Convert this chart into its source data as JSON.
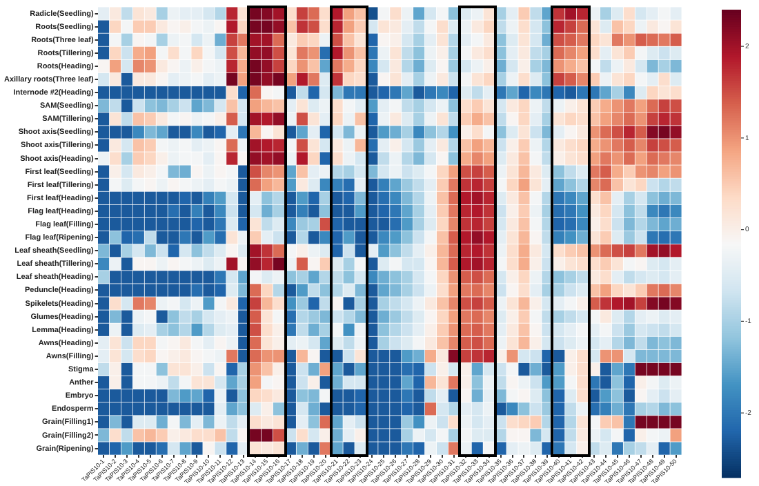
{
  "chart_data": {
    "type": "heatmap",
    "categories": [
      "TaPIS10-1",
      "TaPIS10-2",
      "TaPIS10-3",
      "TaPIS10-4",
      "TaPIS10-5",
      "TaPIS10-6",
      "TaPIS10-7",
      "TaPIS10-8",
      "TaPIS10-9",
      "TaPIS10-10",
      "TaPIS10-11",
      "TaPIS10-12",
      "TaPIS10-13",
      "TaPIS10-14",
      "TaPIS10-15",
      "TaPIS10-16",
      "TaPIS10-17",
      "TaPIS10-18",
      "TaPIS10-19",
      "TaPIS10-20",
      "TaPIS10-21",
      "TaPIS10-22",
      "TaPIS10-23",
      "TaPIS10-24",
      "TaPIS10-25",
      "TaPIS10-26",
      "TaPIS10-27",
      "TaPIS10-28",
      "TaPIS10-29",
      "TaPIS10-30",
      "TaPIS10-31",
      "TaPIS10-32",
      "TaPIS10-33",
      "TaPIS10-34",
      "TaPIS10-35",
      "TaPIS10-36",
      "TaPIS10-37",
      "TaPIS10-38",
      "TaPIS10-39",
      "TaPIS10-40",
      "TaPIS10-41",
      "TaPIS10-42",
      "TaPIS10-43",
      "TaPIS10-44",
      "TaPIS10-45",
      "TaPIS10-46",
      "TaPIS10-47",
      "TaPIS10-48",
      "TaPIS10-49",
      "TaPIS10-50"
    ],
    "y_categories": [
      "Radicle(Seedling)",
      "Roots(Seedling)",
      "Roots(Three leaf)",
      "Roots(Tillering)",
      "Roots(Heading)",
      "Axillary roots(Three leaf)",
      "Internode #2(Heading)",
      "SAM(Seedling)",
      "SAM(Tillering)",
      "Shoot axis(Seedling)",
      "Shoot axis(Tillering)",
      "Shoot axis(Heading)",
      "First leaf(Seedling)",
      "First leaf(Tillering)",
      "First leaf(Heading)",
      "Flag leaf(Heading)",
      "Flag leaf(Filling)",
      "Flag leaf(Ripening)",
      "Leaf sheath(Seedling)",
      "Leaf sheath(Tillering)",
      "Leaf sheath(Heading)",
      "Peduncle(Heading)",
      "Spikelets(Heading)",
      "Glumes(Heading)",
      "Lemma(Heading)",
      "Awns(Heading)",
      "Awns(Filling)",
      "Stigma",
      "Anther",
      "Embryo",
      "Endosperm",
      "Grain(Filling1)",
      "Grain(Filling2)",
      "Grain(Ripening)"
    ],
    "cells": [
      [
        -0.4,
        0.1,
        -0.8,
        0.2,
        0.1,
        -1.0,
        -0.3,
        -0.4,
        -0.4,
        -0.6,
        -0.9,
        1.8,
        0.2,
        2.3,
        2.2,
        2.0,
        0.3,
        1.6,
        1.3,
        0.3,
        1.9,
        0.9,
        0.6,
        -2.4,
        -0.2,
        0.3,
        -0.3,
        -1.5,
        -0.6,
        -0.2,
        -1.2,
        -0.5,
        -0.3,
        0.2,
        -1.0,
        -0.4,
        0.5,
        -0.8,
        -1.5,
        1.7,
        2.0,
        1.8,
        -0.3,
        -1.0,
        -0.5,
        0.3,
        -0.6,
        -0.4,
        -0.2,
        -0.4
      ],
      [
        -2.3,
        0.4,
        -0.2,
        0.5,
        0.5,
        0.1,
        -0.1,
        0.0,
        -0.2,
        -0.3,
        -0.1,
        1.9,
        0.4,
        2.3,
        2.3,
        2.1,
        0.6,
        1.7,
        1.5,
        0.3,
        1.8,
        0.9,
        0.5,
        -0.6,
        0.2,
        0.1,
        -0.4,
        -0.8,
        -0.2,
        0.3,
        -0.5,
        -0.3,
        0.1,
        0.4,
        -0.8,
        -0.3,
        0.3,
        -0.6,
        -1.2,
        1.8,
        1.6,
        1.3,
        0.2,
        -0.5,
        0.6,
        0.4,
        -0.3,
        0.1,
        -0.1,
        0.2
      ],
      [
        -2.3,
        -0.2,
        -1.0,
        -0.1,
        -0.2,
        -1.0,
        -0.3,
        -0.2,
        -0.6,
        -0.3,
        -1.4,
        1.6,
        1.2,
        2.0,
        2.0,
        1.3,
        0.1,
        0.5,
        0.4,
        -0.3,
        1.5,
        0.6,
        0.2,
        -2.2,
        -0.1,
        0.0,
        -0.6,
        -1.0,
        -0.4,
        0.2,
        -0.9,
        -0.4,
        -0.2,
        0.1,
        -1.2,
        -0.5,
        0.2,
        -0.6,
        -1.4,
        1.5,
        1.4,
        1.2,
        0.4,
        0.2,
        1.2,
        1.0,
        1.4,
        1.3,
        1.2,
        1.4
      ],
      [
        -2.3,
        0.4,
        -0.7,
        0.8,
        0.9,
        -0.2,
        0.3,
        -0.2,
        0.4,
        -0.2,
        -0.6,
        1.5,
        0.7,
        2.1,
        2.1,
        1.5,
        0.2,
        1.2,
        1.0,
        -2.1,
        1.9,
        1.0,
        0.6,
        -2.0,
        -0.3,
        0.2,
        -0.8,
        -1.2,
        -0.3,
        0.0,
        -1.0,
        -0.2,
        0.1,
        0.3,
        -1.2,
        -0.4,
        0.1,
        -0.8,
        -1.0,
        1.3,
        1.1,
        0.9,
        0.3,
        -0.4,
        0.2,
        0.5,
        -0.2,
        -0.5,
        -0.7,
        -0.5
      ],
      [
        -0.1,
        0.9,
        -0.6,
        1.1,
        1.0,
        0.1,
        -0.1,
        -0.3,
        0.0,
        -0.2,
        -0.3,
        1.8,
        0.8,
        2.3,
        2.1,
        1.6,
        0.4,
        1.0,
        0.6,
        -1.5,
        1.2,
        0.8,
        0.4,
        -1.8,
        -0.6,
        0.1,
        -0.9,
        -1.4,
        -0.5,
        -0.1,
        -1.1,
        -0.6,
        -0.3,
        0.0,
        -1.4,
        -0.6,
        0.0,
        -1.0,
        -1.3,
        1.0,
        0.8,
        0.6,
        -0.2,
        -0.8,
        -0.3,
        0.1,
        -0.6,
        -1.3,
        -1.0,
        -1.3
      ],
      [
        -0.6,
        0.1,
        -2.3,
        0.1,
        0.1,
        -0.1,
        -0.4,
        -0.3,
        -0.2,
        -0.4,
        -0.3,
        2.3,
        0.9,
        2.3,
        2.1,
        2.3,
        0.9,
        1.9,
        1.2,
        -0.5,
        1.7,
        0.4,
        0.3,
        -2.3,
        -0.1,
        0.2,
        -0.4,
        -1.0,
        -0.3,
        0.1,
        -0.7,
        -0.2,
        0.2,
        0.4,
        -1.0,
        -0.3,
        0.3,
        -0.5,
        -1.2,
        1.6,
        1.4,
        1.1,
        0.5,
        -0.3,
        0.2,
        0.4,
        -0.2,
        -0.4,
        0.3,
        -0.5
      ],
      [
        -2.3,
        -2.3,
        -2.3,
        -2.3,
        -2.3,
        -2.3,
        -2.3,
        -2.3,
        -2.3,
        -2.3,
        -2.3,
        0.3,
        -2.2,
        1.3,
        -0.1,
        -0.2,
        -2.3,
        -0.8,
        -2.2,
        -0.6,
        -1.3,
        -2.0,
        -2.0,
        -2.3,
        -2.2,
        -2.0,
        -1.5,
        -2.3,
        -2.0,
        -1.8,
        -2.2,
        -0.5,
        -0.8,
        -0.4,
        -2.0,
        -1.5,
        -2.2,
        -1.8,
        -2.0,
        -2.2,
        -2.3,
        -2.0,
        -2.0,
        -1.5,
        -1.0,
        -1.8,
        -0.5,
        0.4,
        0.2,
        0.3
      ],
      [
        -1.3,
        -0.8,
        -2.3,
        -0.7,
        -1.2,
        -1.3,
        -1.0,
        -0.7,
        -1.5,
        -1.3,
        -0.6,
        0.6,
        -0.6,
        0.9,
        0.7,
        0.6,
        -0.4,
        0.2,
        -0.5,
        -0.3,
        0.3,
        -0.2,
        -0.4,
        -1.6,
        -0.4,
        -0.2,
        -0.8,
        -1.0,
        -0.6,
        -0.3,
        -1.2,
        0.3,
        0.5,
        0.2,
        -0.6,
        0.1,
        0.4,
        -0.3,
        -0.8,
        -0.3,
        0.0,
        0.2,
        0.5,
        0.8,
        1.0,
        1.2,
        0.9,
        1.3,
        1.6,
        1.5
      ],
      [
        -2.3,
        0.2,
        -0.8,
        0.6,
        0.5,
        0.1,
        -0.2,
        -0.1,
        -0.3,
        -0.2,
        0.0,
        1.4,
        -0.6,
        2.0,
        1.9,
        2.1,
        -0.3,
        1.5,
        0.2,
        -0.4,
        0.4,
        -0.3,
        0.6,
        -2.2,
        -0.3,
        0.1,
        -0.5,
        -1.0,
        -0.3,
        0.2,
        -0.8,
        0.5,
        0.8,
        0.6,
        -0.8,
        -0.1,
        0.4,
        -0.4,
        -1.0,
        0.2,
        0.4,
        0.3,
        0.6,
        0.9,
        1.1,
        1.3,
        1.0,
        1.6,
        1.8,
        1.7
      ],
      [
        -2.3,
        -2.3,
        -2.3,
        -1.8,
        -1.3,
        -1.5,
        -2.3,
        -2.3,
        -1.8,
        -2.3,
        -2.2,
        -0.4,
        -2.0,
        0.7,
        -0.1,
        0.2,
        -2.3,
        -1.5,
        -0.4,
        -2.2,
        -0.6,
        -1.3,
        -0.3,
        -2.3,
        -1.6,
        -1.4,
        -1.0,
        -1.8,
        -1.2,
        -0.9,
        -1.7,
        0.0,
        0.3,
        -0.2,
        -1.2,
        -0.5,
        0.2,
        -0.7,
        -1.3,
        -0.4,
        -0.1,
        0.1,
        1.0,
        1.3,
        1.5,
        1.8,
        1.4,
        2.2,
        2.3,
        2.1
      ],
      [
        -2.3,
        0.1,
        -0.6,
        0.6,
        0.5,
        -0.2,
        -0.3,
        -0.2,
        -0.4,
        -0.3,
        -0.1,
        1.3,
        -0.3,
        2.0,
        1.9,
        1.8,
        -0.2,
        1.5,
        0.2,
        -0.6,
        0.1,
        -0.3,
        0.7,
        -2.1,
        -0.4,
        0.0,
        -0.6,
        -1.1,
        -0.4,
        0.1,
        -0.9,
        0.6,
        0.9,
        0.7,
        -0.7,
        0.0,
        0.5,
        -0.3,
        -0.9,
        0.1,
        0.3,
        0.4,
        0.8,
        1.0,
        1.2,
        1.4,
        1.1,
        1.6,
        1.5,
        1.4
      ],
      [
        -0.3,
        0.3,
        -1.0,
        0.5,
        0.4,
        0.0,
        -0.3,
        -0.2,
        -0.2,
        -0.4,
        -0.1,
        1.8,
        -0.1,
        2.1,
        2.0,
        2.1,
        -0.3,
        1.9,
        0.4,
        -2.2,
        0.3,
        -0.3,
        -0.6,
        -2.3,
        -0.8,
        -0.3,
        -0.9,
        -1.3,
        -0.6,
        -0.1,
        -1.2,
        0.8,
        1.1,
        0.9,
        -0.5,
        0.1,
        0.6,
        -0.2,
        -0.8,
        0.0,
        0.2,
        0.3,
        0.9,
        1.2,
        1.0,
        1.3,
        0.9,
        1.3,
        1.2,
        1.1
      ],
      [
        -2.3,
        0.0,
        -0.6,
        0.1,
        0.0,
        -0.2,
        -1.3,
        -1.4,
        -0.1,
        -0.3,
        -0.1,
        -0.2,
        -2.3,
        1.5,
        1.1,
        1.0,
        -1.5,
        0.6,
        -0.4,
        -0.3,
        -0.9,
        -1.0,
        -0.6,
        -1.3,
        -0.6,
        -0.3,
        -0.7,
        -0.5,
        -0.2,
        0.4,
        0.9,
        1.5,
        1.6,
        1.4,
        -0.3,
        0.2,
        0.7,
        0.1,
        -0.5,
        -1.2,
        -0.8,
        -0.5,
        1.2,
        1.4,
        0.8,
        0.5,
        1.0,
        1.1,
        0.9,
        1.0
      ],
      [
        -2.3,
        -0.2,
        -0.5,
        -0.2,
        -0.1,
        -0.3,
        -0.1,
        -0.2,
        -0.3,
        -0.4,
        -0.2,
        -0.3,
        -2.3,
        1.3,
        0.9,
        0.7,
        -1.6,
        0.1,
        -0.5,
        -1.8,
        -1.9,
        -2.1,
        -0.4,
        -2.3,
        -1.9,
        -1.5,
        -1.1,
        -0.8,
        -0.4,
        0.5,
        1.2,
        1.7,
        1.8,
        1.6,
        -0.2,
        0.4,
        0.9,
        0.2,
        -0.4,
        -1.5,
        -1.2,
        -0.9,
        1.1,
        1.3,
        0.6,
        0.2,
        0.4,
        -0.7,
        -0.9,
        -0.8
      ],
      [
        -2.3,
        -2.3,
        -2.3,
        -2.3,
        -2.3,
        -2.3,
        -2.3,
        -2.2,
        -2.3,
        -1.9,
        -1.6,
        -0.6,
        -2.3,
        -0.4,
        -1.2,
        -0.9,
        -2.3,
        -1.6,
        -2.2,
        -1.0,
        -2.3,
        -2.2,
        -1.3,
        -2.3,
        -2.1,
        -1.8,
        -1.3,
        -0.9,
        -0.3,
        0.6,
        1.3,
        1.9,
        2.0,
        1.8,
        -0.5,
        0.1,
        0.6,
        -0.2,
        -0.9,
        -2.0,
        -1.8,
        -1.5,
        0.3,
        0.6,
        -0.4,
        -1.0,
        -0.6,
        -1.2,
        -1.4,
        -1.3
      ],
      [
        -2.3,
        -2.3,
        -2.3,
        -2.3,
        -2.3,
        -2.3,
        -2.1,
        -2.3,
        -1.9,
        -2.3,
        -1.8,
        -0.7,
        -2.3,
        -0.6,
        -1.4,
        -1.0,
        -2.3,
        -1.9,
        -2.3,
        -1.2,
        -2.3,
        -2.3,
        -1.6,
        -2.3,
        -2.2,
        -2.0,
        -1.5,
        -1.0,
        -0.4,
        0.5,
        1.2,
        1.8,
        1.9,
        1.7,
        -0.7,
        0.0,
        0.5,
        -0.3,
        -1.0,
        -2.1,
        -2.0,
        -1.7,
        0.1,
        0.4,
        -0.6,
        -1.2,
        -0.8,
        -1.8,
        -2.0,
        -1.8
      ],
      [
        -2.3,
        -2.3,
        -2.3,
        -2.3,
        -2.3,
        -2.3,
        -2.3,
        -2.3,
        -2.2,
        -2.3,
        -2.0,
        -0.5,
        -2.2,
        0.2,
        -0.8,
        -0.5,
        -1.8,
        -1.1,
        -1.0,
        1.5,
        -2.2,
        -2.3,
        -2.3,
        -2.3,
        -2.3,
        -2.1,
        -1.6,
        -1.0,
        -0.5,
        0.4,
        1.1,
        1.7,
        1.8,
        1.6,
        -0.6,
        0.1,
        0.6,
        -0.2,
        -0.9,
        -2.2,
        -2.1,
        -1.8,
        0.0,
        0.3,
        -0.7,
        -1.3,
        -0.9,
        -1.3,
        -1.5,
        -1.4
      ],
      [
        -2.3,
        -1.2,
        -2.2,
        -2.1,
        -0.8,
        -2.3,
        -2.3,
        -2.0,
        -2.3,
        -1.6,
        -2.1,
        0.2,
        -0.3,
        0.5,
        -0.4,
        -0.7,
        -2.3,
        -0.9,
        -2.3,
        -1.8,
        -2.2,
        -1.6,
        -2.3,
        -2.3,
        -1.8,
        -1.6,
        -1.2,
        -0.7,
        -0.2,
        0.6,
        1.4,
        1.9,
        2.1,
        1.9,
        -0.4,
        0.2,
        0.7,
        -0.1,
        -0.8,
        -1.9,
        -1.7,
        -1.4,
        0.2,
        0.5,
        -0.5,
        -1.1,
        -0.7,
        -2.0,
        -2.1,
        -2.0
      ],
      [
        -1.3,
        -2.3,
        -1.0,
        -0.6,
        -1.3,
        -0.7,
        -2.2,
        -0.6,
        -1.2,
        -0.8,
        -0.5,
        -0.1,
        -0.5,
        2.0,
        1.7,
        1.3,
        -0.2,
        0.0,
        -0.3,
        -0.5,
        -2.2,
        -0.7,
        -2.3,
        -0.4,
        -1.6,
        -1.2,
        -0.8,
        -0.4,
        0.0,
        0.7,
        1.3,
        1.8,
        1.9,
        1.7,
        -0.3,
        0.3,
        0.8,
        0.1,
        -0.6,
        0.3,
        0.5,
        0.6,
        1.0,
        1.3,
        1.5,
        1.6,
        1.2,
        2.0,
        2.1,
        1.9
      ],
      [
        -1.8,
        -0.3,
        -2.3,
        -0.1,
        -0.1,
        -0.3,
        -0.1,
        -0.2,
        -0.3,
        -0.5,
        -0.3,
        2.0,
        -0.1,
        2.1,
        1.8,
        2.3,
        -0.3,
        1.4,
        -0.1,
        0.5,
        -0.5,
        -1.0,
        -0.2,
        -2.3,
        -0.5,
        -0.2,
        -0.6,
        -0.6,
        -0.1,
        0.7,
        1.4,
        1.9,
        2.0,
        1.8,
        -0.2,
        0.3,
        0.8,
        0.0,
        -0.7,
        0.0,
        0.2,
        0.3,
        0.3,
        0.5,
        0.2,
        -0.2,
        -0.1,
        -0.5,
        -0.6,
        -0.4
      ],
      [
        -1.0,
        -2.3,
        -2.3,
        -2.3,
        -2.3,
        -2.3,
        -2.3,
        -2.3,
        -2.3,
        -2.3,
        -2.0,
        -0.6,
        -1.5,
        -0.2,
        -0.5,
        -0.3,
        -1.2,
        -1.0,
        -1.5,
        -0.9,
        -0.8,
        -1.2,
        -0.6,
        -1.8,
        -1.4,
        -1.2,
        -1.0,
        -0.6,
        -0.2,
        0.4,
        1.0,
        1.4,
        1.5,
        1.3,
        -0.6,
        0.0,
        0.4,
        -0.3,
        -0.9,
        -1.2,
        -1.0,
        -0.8,
        0.1,
        0.3,
        -0.4,
        -0.8,
        -0.6,
        -0.5,
        -0.6,
        -0.4
      ],
      [
        -2.3,
        -2.3,
        -2.3,
        -2.3,
        -2.3,
        -2.3,
        -2.3,
        -2.3,
        -2.1,
        -2.3,
        -2.2,
        -0.5,
        -1.3,
        1.3,
        0.4,
        -0.9,
        -2.3,
        -1.6,
        -0.8,
        -1.2,
        -0.9,
        -0.5,
        -1.3,
        -2.3,
        -1.5,
        -1.3,
        -1.0,
        -0.7,
        -0.3,
        0.3,
        0.9,
        1.2,
        1.3,
        1.1,
        -0.7,
        -0.1,
        0.3,
        -0.4,
        -1.0,
        -1.0,
        -0.7,
        -0.5,
        0.6,
        0.9,
        0.4,
        0.2,
        0.5,
        1.2,
        1.3,
        1.1
      ],
      [
        -2.3,
        0.3,
        -0.6,
        1.2,
        1.1,
        -0.3,
        -0.2,
        -0.6,
        -0.3,
        -1.6,
        -0.2,
        0.1,
        -2.2,
        1.6,
        0.7,
        0.3,
        -1.7,
        -1.1,
        -2.2,
        -0.8,
        -0.1,
        -2.3,
        -1.0,
        -2.3,
        -1.0,
        -0.8,
        -0.6,
        -0.3,
        0.1,
        0.6,
        1.1,
        1.5,
        1.6,
        1.4,
        -0.3,
        0.2,
        0.7,
        0.0,
        -0.6,
        -0.4,
        -0.2,
        0.0,
        1.4,
        1.7,
        1.9,
        2.0,
        1.6,
        2.2,
        2.3,
        2.2
      ],
      [
        -2.3,
        -1.3,
        -2.3,
        -0.3,
        -0.2,
        -2.3,
        -1.2,
        -0.8,
        -1.0,
        -0.6,
        -0.4,
        -0.3,
        -2.3,
        1.4,
        0.2,
        -0.2,
        -2.1,
        -0.9,
        -1.1,
        -1.3,
        -0.7,
        -0.9,
        -1.3,
        -2.3,
        -1.4,
        -1.1,
        -0.8,
        -0.5,
        -0.1,
        0.4,
        0.9,
        1.2,
        1.3,
        1.1,
        -0.5,
        0.0,
        0.5,
        -0.2,
        -0.8,
        -1.0,
        -0.8,
        -0.6,
        -0.2,
        0.1,
        -0.5,
        -0.9,
        -0.4,
        -0.3,
        -0.5,
        -0.4
      ],
      [
        -2.3,
        -0.3,
        -2.3,
        -0.5,
        -0.4,
        -1.0,
        -1.2,
        -0.9,
        -1.6,
        -0.9,
        -0.5,
        -0.4,
        -2.3,
        1.5,
        0.3,
        0.0,
        -2.0,
        -0.8,
        -1.4,
        -1.0,
        -0.2,
        -1.7,
        -0.3,
        -2.3,
        -1.2,
        -0.9,
        -0.7,
        -0.4,
        0.0,
        0.5,
        1.0,
        1.3,
        1.4,
        1.2,
        -0.4,
        0.1,
        0.6,
        -0.1,
        -0.7,
        -0.6,
        -0.4,
        -0.2,
        -0.4,
        -0.2,
        -0.7,
        -1.1,
        -0.6,
        -0.7,
        -0.8,
        -0.6
      ],
      [
        -0.4,
        0.2,
        -0.7,
        0.4,
        0.4,
        -0.2,
        -0.1,
        0.1,
        -0.2,
        -0.4,
        -0.1,
        -0.3,
        -2.3,
        1.3,
        0.2,
        0.0,
        -0.4,
        -0.3,
        -0.6,
        -1.5,
        -0.5,
        -0.8,
        -0.3,
        -2.3,
        -1.0,
        -0.7,
        -0.5,
        -0.2,
        0.1,
        0.6,
        1.1,
        1.4,
        1.5,
        1.3,
        -0.3,
        0.2,
        0.7,
        0.0,
        -0.6,
        -0.7,
        -0.5,
        -0.3,
        -0.6,
        -0.4,
        -0.9,
        -1.3,
        -0.8,
        -1.3,
        -1.2,
        -1.3
      ],
      [
        -0.4,
        0.2,
        -0.6,
        0.3,
        0.4,
        -0.1,
        0.0,
        0.1,
        -0.1,
        -0.2,
        -0.3,
        1.2,
        -2.3,
        1.3,
        1.0,
        1.0,
        -2.3,
        0.7,
        -0.1,
        -2.3,
        -2.3,
        -0.7,
        0.2,
        -2.3,
        -2.3,
        -2.3,
        -1.6,
        -1.4,
        0.8,
        0.1,
        2.2,
        1.6,
        1.7,
        1.8,
        0.0,
        1.0,
        -0.6,
        -0.7,
        -2.2,
        -2.3,
        0.0,
        0.3,
        -0.6,
        1.0,
        1.0,
        -0.6,
        -1.3,
        -1.3,
        -1.3,
        -1.3
      ],
      [
        -0.8,
        0.0,
        -2.3,
        -0.2,
        -0.2,
        -1.2,
        0.2,
        0.2,
        0.0,
        -0.7,
        -0.1,
        -2.2,
        -1.0,
        1.0,
        0.6,
        0.0,
        -2.3,
        -0.7,
        -1.4,
        0.9,
        -1.5,
        -2.3,
        -1.5,
        -2.3,
        -2.3,
        -2.3,
        -2.1,
        -2.2,
        -0.7,
        0.0,
        -0.6,
        0.0,
        -1.5,
        -0.6,
        -0.7,
        -0.2,
        -2.3,
        -1.4,
        -2.3,
        -1.6,
        0.0,
        0.3,
        0.0,
        -2.3,
        -1.5,
        -2.0,
        2.3,
        2.3,
        2.3,
        2.3
      ],
      [
        -2.3,
        0.0,
        -2.3,
        -0.2,
        -0.2,
        -0.3,
        -0.8,
        -0.2,
        0.2,
        0.2,
        -0.6,
        -1.5,
        -1.0,
        0.9,
        -0.2,
        -0.1,
        -2.3,
        -0.7,
        0.0,
        -2.3,
        -1.4,
        -0.6,
        -0.6,
        -2.3,
        -2.3,
        -2.3,
        -1.5,
        -2.2,
        0.7,
        0.2,
        1.2,
        0.0,
        -1.2,
        -0.3,
        -0.8,
        -0.1,
        -0.3,
        -0.7,
        -1.6,
        -1.6,
        -0.2,
        0.3,
        -2.0,
        -2.3,
        -1.2,
        -2.2,
        0.0,
        -0.2,
        -0.5,
        -0.3
      ],
      [
        -2.3,
        -2.3,
        -2.3,
        -2.3,
        -2.3,
        -2.3,
        -1.3,
        -1.6,
        -1.5,
        -2.2,
        -0.3,
        -2.3,
        -1.2,
        0.4,
        0.3,
        0.1,
        -2.3,
        -1.2,
        -1.3,
        -0.2,
        -2.3,
        -2.3,
        -2.2,
        -2.3,
        -2.3,
        -2.3,
        -2.0,
        -2.3,
        -0.8,
        -0.4,
        -2.3,
        -0.1,
        -1.4,
        -0.4,
        -1.3,
        -0.2,
        -0.1,
        -0.5,
        -1.2,
        -2.2,
        -0.5,
        0.3,
        -2.3,
        -1.6,
        -1.2,
        -2.3,
        -0.1,
        -0.4,
        -0.7,
        -0.4
      ],
      [
        -2.3,
        -2.3,
        -2.3,
        -2.3,
        -2.3,
        -2.3,
        -2.3,
        -2.3,
        -2.3,
        -2.3,
        -0.4,
        -1.5,
        -1.2,
        -0.5,
        0.0,
        -1.2,
        -2.3,
        -0.6,
        -1.4,
        -2.3,
        -2.3,
        -2.3,
        -2.2,
        -2.3,
        -2.3,
        -2.3,
        -2.2,
        -2.3,
        1.3,
        -0.6,
        -0.9,
        -0.4,
        -0.6,
        -0.3,
        -2.3,
        -1.8,
        -1.2,
        -0.7,
        -1.1,
        -2.2,
        -0.8,
        -0.3,
        -2.1,
        -1.9,
        -1.4,
        -2.0,
        -1.0,
        -0.9,
        -1.3,
        -1.2
      ],
      [
        -2.3,
        -1.3,
        -2.3,
        -0.5,
        -0.5,
        -1.4,
        -0.2,
        -1.3,
        -0.4,
        -1.3,
        -0.3,
        -0.8,
        -0.4,
        0.3,
        0.1,
        0.2,
        -2.3,
        -0.4,
        -1.2,
        1.3,
        -1.5,
        -0.4,
        -0.7,
        -2.3,
        -2.3,
        -2.3,
        -1.1,
        -1.7,
        -0.3,
        -0.7,
        0.3,
        -0.3,
        -0.6,
        -0.4,
        -0.7,
        0.3,
        0.4,
        0.5,
        -0.9,
        -2.2,
        -0.9,
        0.2,
        -0.2,
        0.5,
        0.6,
        -2.0,
        2.3,
        2.3,
        2.3,
        2.3
      ],
      [
        -1.3,
        0.3,
        -0.8,
        0.6,
        0.7,
        0.5,
        0.0,
        0.1,
        0.3,
        0.3,
        0.6,
        -0.8,
        -0.1,
        2.3,
        2.3,
        1.5,
        -0.7,
        0.3,
        -0.6,
        0.0,
        -1.4,
        -0.4,
        0.0,
        -2.3,
        -2.3,
        -2.3,
        -1.0,
        -0.3,
        -0.6,
        -0.2,
        -1.0,
        -0.2,
        -0.5,
        -0.5,
        -0.9,
        -0.1,
        -0.1,
        -1.3,
        -0.6,
        -2.2,
        -0.8,
        0.1,
        -0.3,
        -0.6,
        -0.2,
        -2.2,
        0.0,
        -0.2,
        -0.3,
        0.9
      ],
      [
        -2.3,
        -2.2,
        -1.6,
        -2.3,
        -2.3,
        -2.1,
        -0.6,
        -1.5,
        -2.3,
        -0.1,
        -0.7,
        -2.2,
        -0.4,
        0.2,
        0.1,
        0.2,
        -2.3,
        -1.4,
        -2.3,
        1.2,
        -1.5,
        -2.3,
        -0.5,
        -2.3,
        -2.3,
        -2.3,
        -2.0,
        -2.2,
        -0.3,
        -0.7,
        1.2,
        -0.3,
        -2.2,
        -0.2,
        -2.2,
        -0.4,
        -0.3,
        -0.5,
        -2.2,
        -2.0,
        -0.6,
        0.0,
        -0.8,
        -0.5,
        -2.0,
        -1.0,
        -0.8,
        -0.4,
        -2.2,
        -1.6
      ]
    ],
    "clim": [
      -2.7,
      2.4
    ],
    "cticks": [
      -2,
      -1,
      0,
      1,
      2
    ]
  }
}
